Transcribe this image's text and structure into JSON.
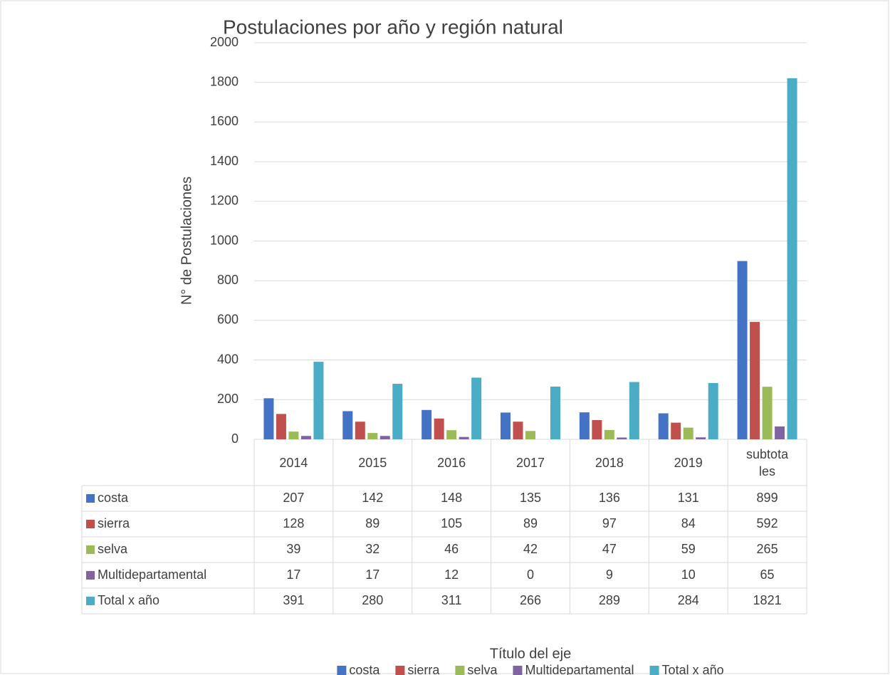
{
  "chart_data": {
    "type": "bar",
    "title": "Postulaciones por año y región natural",
    "y_label": "N° de Postulaciones",
    "x_label": "Título del eje",
    "categories": [
      "2014",
      "2015",
      "2016",
      "2017",
      "2018",
      "2019",
      "subtotales"
    ],
    "series": [
      {
        "name": "costa",
        "color": "#4472c4",
        "values": [
          207,
          142,
          148,
          135,
          136,
          131,
          899
        ]
      },
      {
        "name": "sierra",
        "color": "#c0504d",
        "values": [
          128,
          89,
          105,
          89,
          97,
          84,
          592
        ]
      },
      {
        "name": "selva",
        "color": "#9bbb59",
        "values": [
          39,
          32,
          46,
          42,
          47,
          59,
          265
        ]
      },
      {
        "name": "Multidepartamental",
        "color": "#8064a2",
        "values": [
          17,
          17,
          12,
          0,
          9,
          10,
          65
        ]
      },
      {
        "name": "Total x año",
        "color": "#4bacc6",
        "values": [
          391,
          280,
          311,
          266,
          289,
          284,
          1821
        ]
      }
    ],
    "ylim": [
      0,
      2000
    ],
    "yticks": [
      0,
      200,
      400,
      600,
      800,
      1000,
      1200,
      1400,
      1600,
      1800,
      2000
    ],
    "grid": true,
    "legend": "bottom"
  }
}
